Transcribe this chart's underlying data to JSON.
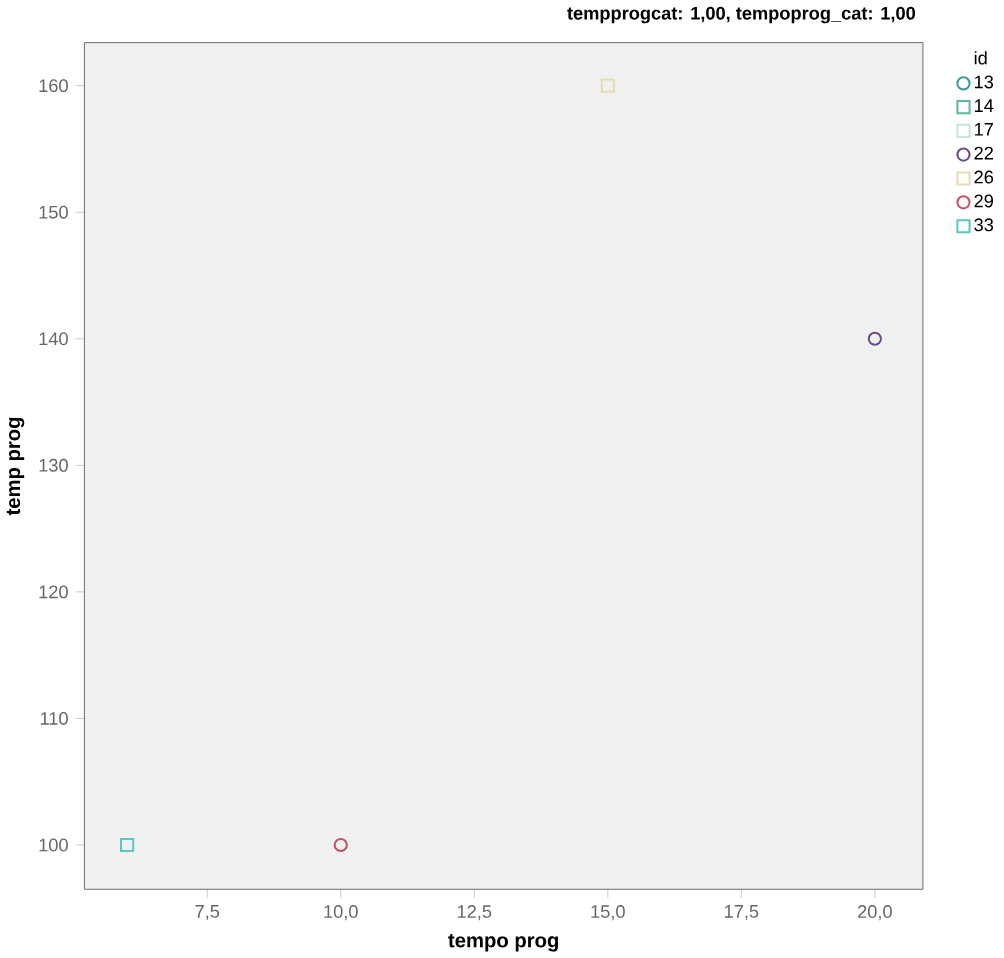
{
  "chart_data": {
    "type": "scatter",
    "title": "tempprogcat: 1,00, tempoprog_cat: 1,00",
    "xlabel": "tempo prog",
    "ylabel": "temp prog",
    "legend_title": "id",
    "xlim": [
      5.2,
      20.9
    ],
    "ylim": [
      96.5,
      163.4
    ],
    "xticks": [
      {
        "value": 7.5,
        "label": "7,5"
      },
      {
        "value": 10,
        "label": "10,0"
      },
      {
        "value": 12.5,
        "label": "12,5"
      },
      {
        "value": 15,
        "label": "15,0"
      },
      {
        "value": 17.5,
        "label": "17,5"
      },
      {
        "value": 20,
        "label": "20,0"
      }
    ],
    "yticks": [
      100,
      110,
      120,
      130,
      140,
      150,
      160
    ],
    "grid": false,
    "legend": "right",
    "series": [
      {
        "name": "13",
        "color": "#3a9a9a",
        "marker": "circle"
      },
      {
        "name": "14",
        "color": "#5cb89a",
        "marker": "square"
      },
      {
        "name": "17",
        "color": "#c8e6d8",
        "marker": "square"
      },
      {
        "name": "22",
        "color": "#6a4a8a",
        "marker": "circle",
        "x": [
          20
        ],
        "values": [
          140
        ]
      },
      {
        "name": "26",
        "color": "#e6dcb4",
        "marker": "square",
        "x": [
          15
        ],
        "values": [
          160
        ]
      },
      {
        "name": "29",
        "color": "#c4506a",
        "marker": "circle",
        "x": [
          10
        ],
        "values": [
          100
        ]
      },
      {
        "name": "33",
        "color": "#58c8c0",
        "marker": "square",
        "x": [
          6
        ],
        "values": [
          100
        ]
      }
    ]
  }
}
